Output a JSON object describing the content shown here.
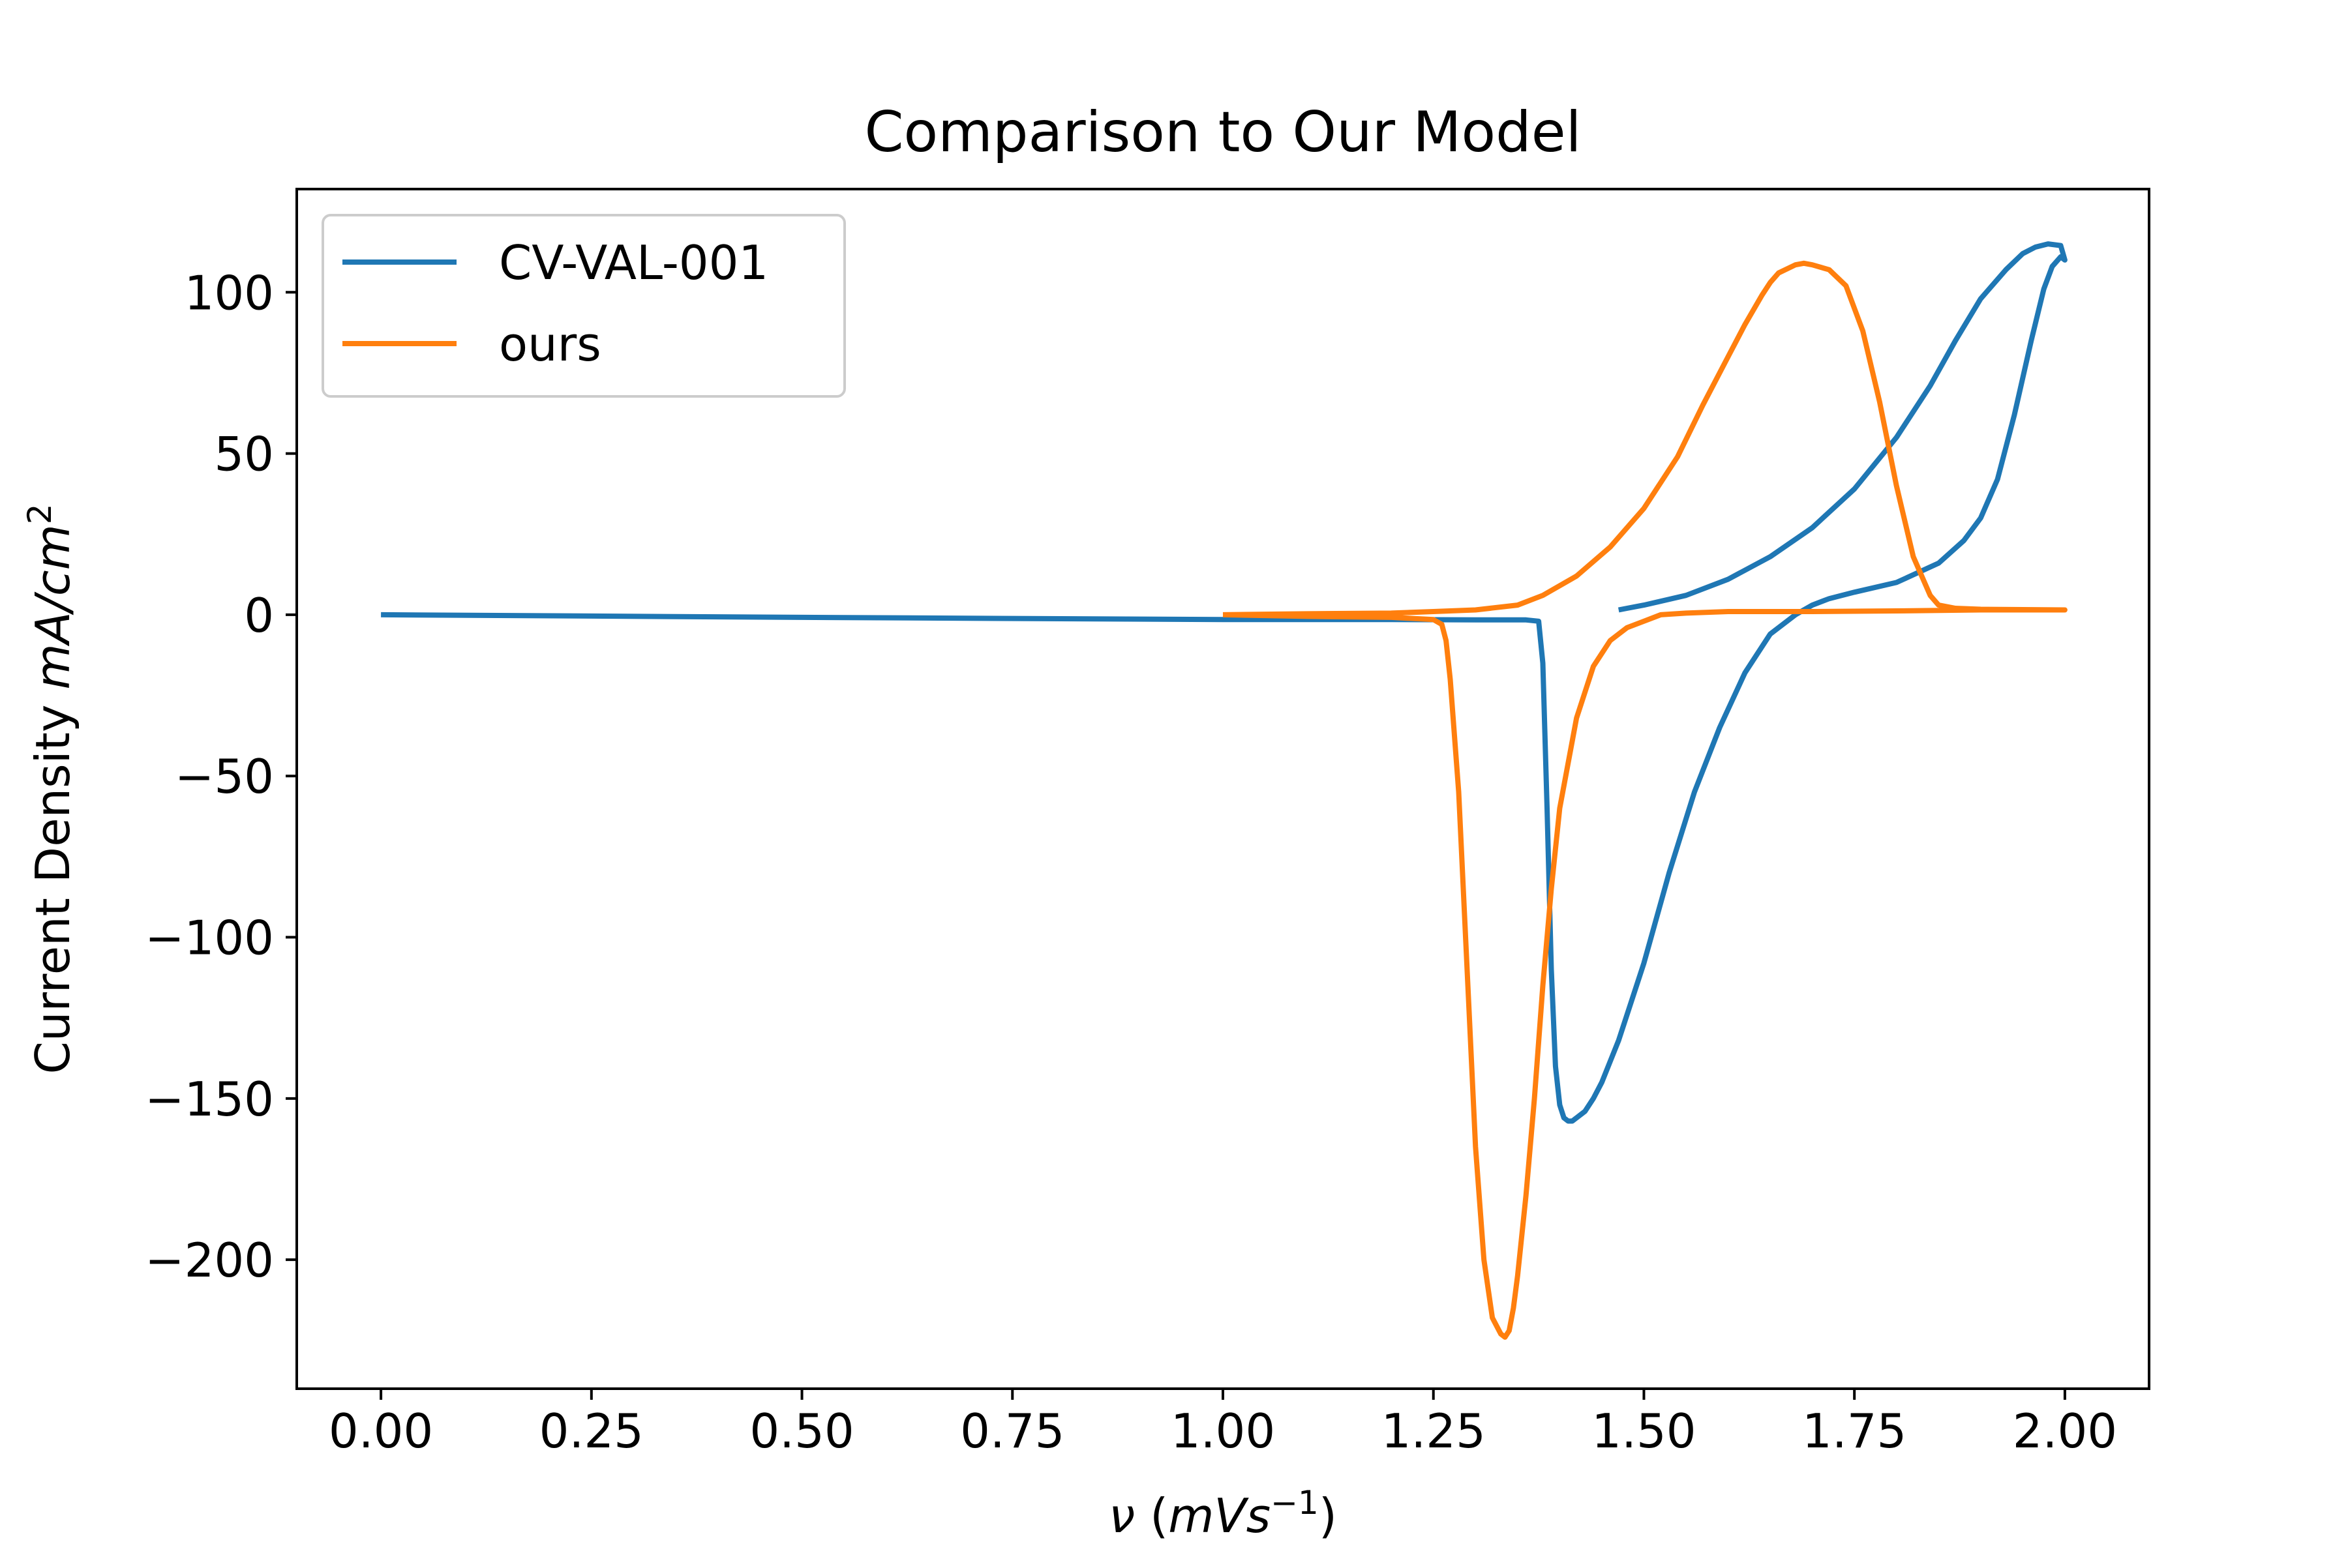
{
  "chart_data": {
    "type": "line",
    "title": "Comparison to Our Model",
    "xlabel": {
      "parts": [
        {
          "text": "ν",
          "style": "italic"
        },
        {
          "text": " (",
          "style": "normal"
        },
        {
          "text": "mVs",
          "style": "italic"
        },
        {
          "text": "−1",
          "style": "sup"
        },
        {
          "text": ")",
          "style": "normal"
        }
      ]
    },
    "ylabel": {
      "parts": [
        {
          "text": "Current Density ",
          "style": "normal"
        },
        {
          "text": "mA/cm",
          "style": "italic"
        },
        {
          "text": "2",
          "style": "sup"
        }
      ]
    },
    "xlim": [
      -0.1,
      2.1
    ],
    "ylim": [
      -240,
      132
    ],
    "x_ticks": [
      0.0,
      0.25,
      0.5,
      0.75,
      1.0,
      1.25,
      1.5,
      1.75,
      2.0
    ],
    "x_tick_labels": [
      "0.00",
      "0.25",
      "0.50",
      "0.75",
      "1.00",
      "1.25",
      "1.50",
      "1.75",
      "2.00"
    ],
    "y_ticks": [
      100,
      50,
      0,
      -50,
      -100,
      -150,
      -200
    ],
    "y_tick_labels": [
      "100",
      "50",
      "0",
      "−50",
      "−100",
      "−150",
      "−200"
    ],
    "grid": false,
    "legend_position": "top-left",
    "series": [
      {
        "name": "CV-VAL-001",
        "color": "#1f77b4",
        "x": [
          0.0,
          0.5,
          1.0,
          1.2,
          1.3,
          1.36,
          1.375,
          1.38,
          1.385,
          1.39,
          1.395,
          1.4,
          1.405,
          1.41,
          1.415,
          1.42,
          1.425,
          1.43,
          1.44,
          1.45,
          1.47,
          1.5,
          1.53,
          1.56,
          1.59,
          1.62,
          1.65,
          1.68,
          1.7,
          1.72,
          1.75,
          1.8,
          1.85,
          1.88,
          1.9,
          1.92,
          1.94,
          1.96,
          1.975,
          1.985,
          1.995,
          2.0,
          1.995,
          1.98,
          1.965,
          1.95,
          1.93,
          1.9,
          1.87,
          1.84,
          1.8,
          1.75,
          1.7,
          1.65,
          1.6,
          1.55,
          1.5,
          1.48,
          1.47
        ],
        "y": [
          0,
          -0.8,
          -1.5,
          -1.5,
          -1.6,
          -1.6,
          -2,
          -15,
          -60,
          -110,
          -140,
          -152,
          -156,
          -157,
          -157,
          -156,
          -155,
          -154,
          -150,
          -145,
          -132,
          -108,
          -80,
          -55,
          -35,
          -18,
          -6,
          0,
          3,
          5,
          7,
          10,
          16,
          23,
          30,
          42,
          62,
          85,
          101,
          108,
          111,
          110,
          114.5,
          115,
          114,
          112,
          107,
          98,
          85,
          71,
          55,
          39,
          27,
          18,
          11,
          6,
          3,
          2,
          1.5
        ]
      },
      {
        "name": "ours",
        "color": "#ff7f0e",
        "x": [
          1.0,
          1.1,
          1.2,
          1.25,
          1.26,
          1.265,
          1.27,
          1.28,
          1.29,
          1.3,
          1.31,
          1.32,
          1.33,
          1.335,
          1.34,
          1.345,
          1.35,
          1.36,
          1.37,
          1.38,
          1.39,
          1.4,
          1.42,
          1.44,
          1.46,
          1.48,
          1.5,
          1.52,
          1.55,
          1.6,
          1.65,
          1.7,
          1.8,
          1.9,
          2.0,
          1.95,
          1.9,
          1.87,
          1.85,
          1.84,
          1.82,
          1.8,
          1.78,
          1.76,
          1.74,
          1.72,
          1.7,
          1.69,
          1.68,
          1.66,
          1.65,
          1.64,
          1.62,
          1.6,
          1.57,
          1.54,
          1.5,
          1.46,
          1.42,
          1.38,
          1.35,
          1.3,
          1.25,
          1.2,
          1.1,
          1.0
        ],
        "y": [
          0,
          -0.5,
          -0.8,
          -1.5,
          -3,
          -8,
          -20,
          -55,
          -110,
          -165,
          -200,
          -218,
          -223,
          -224,
          -222,
          -215,
          -205,
          -180,
          -150,
          -115,
          -85,
          -60,
          -32,
          -16,
          -8,
          -4,
          -2,
          0,
          0.5,
          1,
          1,
          1,
          1.2,
          1.5,
          1.5,
          1.6,
          1.7,
          2,
          3,
          6,
          18,
          40,
          66,
          88,
          102,
          107,
          108.5,
          109,
          108.5,
          106,
          103,
          99,
          90,
          80,
          65,
          49,
          33,
          21,
          12,
          6,
          3,
          1.5,
          1,
          0.5,
          0.3,
          0
        ]
      }
    ]
  }
}
